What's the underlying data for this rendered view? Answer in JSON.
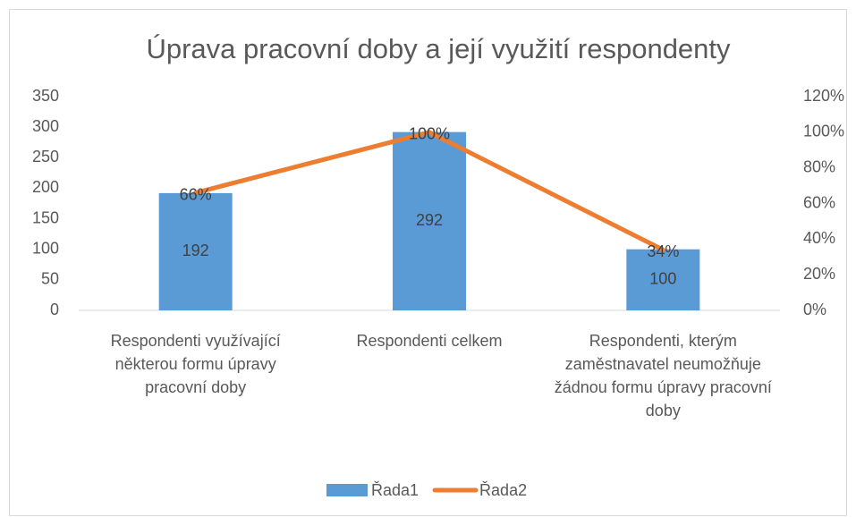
{
  "chart_data": {
    "type": "combo",
    "title": "Úprava pracovní doby a její využití respondenty",
    "categories": [
      "Respondenti využívající některou formu úpravy pracovní doby",
      "Respondenti celkem",
      "Respondenti, kterým zaměstnavatel neumožňuje žádnou formu úpravy pracovní doby"
    ],
    "series": [
      {
        "name": "Řada1",
        "type": "bar",
        "color": "#5b9bd5",
        "values": [
          192,
          292,
          100
        ]
      },
      {
        "name": "Řada2",
        "type": "line",
        "axis": "y2",
        "color": "#ed7d31",
        "values": [
          66,
          100,
          34
        ],
        "value_labels": [
          "66%",
          "100%",
          "34%"
        ]
      }
    ],
    "ylim": [
      0,
      350
    ],
    "yticks": [
      0,
      50,
      100,
      150,
      200,
      250,
      300,
      350
    ],
    "y2lim": [
      0,
      120
    ],
    "y2ticks": [
      {
        "value": 0,
        "label": "0%"
      },
      {
        "value": 20,
        "label": "20%"
      },
      {
        "value": 40,
        "label": "40%"
      },
      {
        "value": 60,
        "label": "60%"
      },
      {
        "value": 80,
        "label": "80%"
      },
      {
        "value": 100,
        "label": "100%"
      },
      {
        "value": 120,
        "label": "120%"
      }
    ],
    "grid": false,
    "legend": "bottom"
  }
}
